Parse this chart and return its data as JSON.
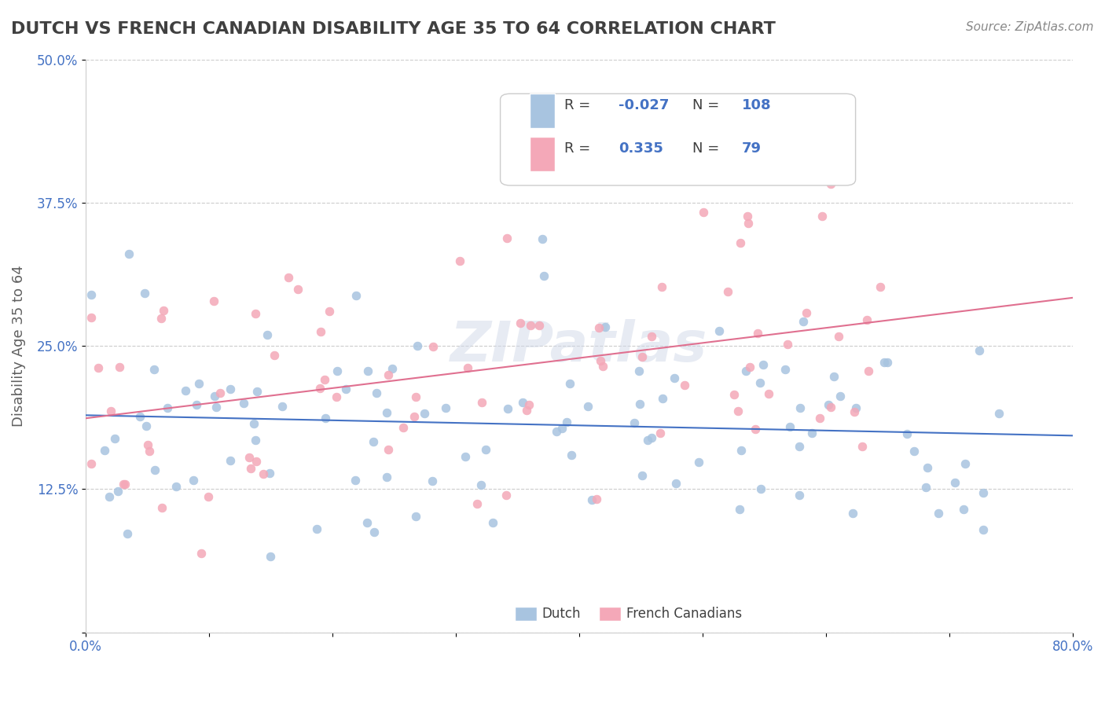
{
  "title": "DUTCH VS FRENCH CANADIAN DISABILITY AGE 35 TO 64 CORRELATION CHART",
  "source": "Source: ZipAtlas.com",
  "xlabel": "",
  "ylabel": "Disability Age 35 to 64",
  "xlim": [
    0.0,
    0.8
  ],
  "ylim": [
    0.0,
    0.5
  ],
  "xticks": [
    0.0,
    0.1,
    0.2,
    0.3,
    0.4,
    0.5,
    0.6,
    0.7,
    0.8
  ],
  "xticklabels": [
    "0.0%",
    "",
    "",
    "",
    "",
    "",
    "",
    "",
    "80.0%"
  ],
  "yticks": [
    0.0,
    0.125,
    0.25,
    0.375,
    0.5
  ],
  "yticklabels": [
    "",
    "12.5%",
    "25.0%",
    "37.5%",
    "50.0%"
  ],
  "dutch_color": "#a8c4e0",
  "french_color": "#f4a8b8",
  "dutch_line_color": "#4472c4",
  "french_line_color": "#e07090",
  "dutch_R": -0.027,
  "dutch_N": 108,
  "french_R": 0.335,
  "french_N": 79,
  "dutch_seed": 42,
  "french_seed": 99,
  "background_color": "#ffffff",
  "grid_color": "#cccccc",
  "title_color": "#404040",
  "axis_label_color": "#606060",
  "tick_color": "#4472c4",
  "watermark_text": "ZIPatlas",
  "legend_label_color": "#4472c4"
}
